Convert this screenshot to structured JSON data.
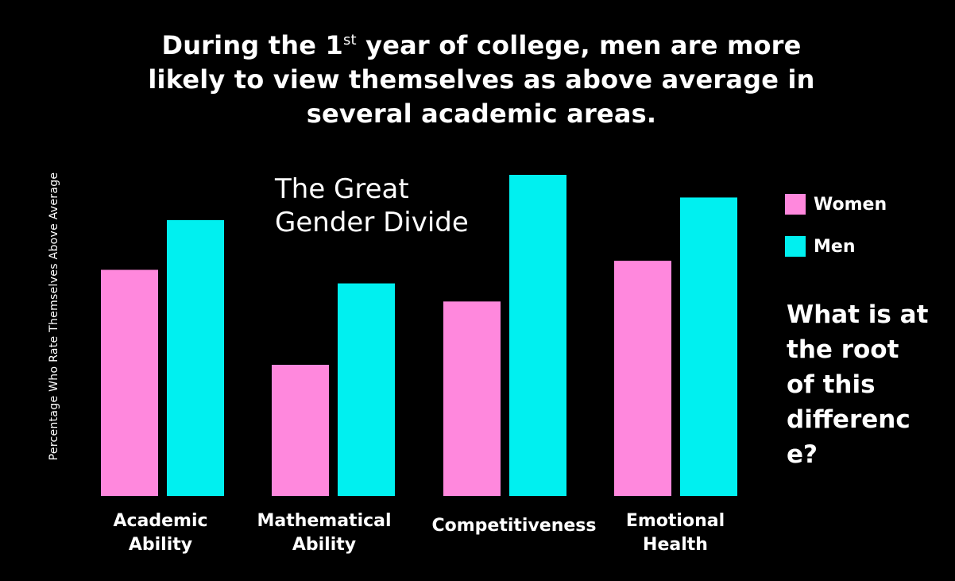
{
  "slide": {
    "title_part1": "During the 1",
    "title_sup": "st",
    "title_part2": " year of college, men are more likely to view themselves as above average in several academic areas.",
    "overlay_line1": "The Great",
    "overlay_line2": "Gender Divide",
    "question": "What is at\nthe root\nof this\ndifferenc\ne?",
    "background": "#000000"
  },
  "chart_data": {
    "type": "bar",
    "title": "",
    "xlabel": "",
    "ylabel": "Percentage Who Rate Themselves Above Average",
    "categories": [
      "Academic\nAbility",
      "Mathematical\nAbility",
      "Competitiveness",
      "Emotional\nHealth"
    ],
    "series": [
      {
        "name": "Women",
        "color": "#ff88dd",
        "values": [
          50,
          29,
          43,
          52
        ]
      },
      {
        "name": "Men",
        "color": "#00f0f0",
        "values": [
          61,
          47,
          71,
          66
        ]
      }
    ],
    "ylim": [
      0,
      71
    ],
    "grid": false,
    "legend": "right",
    "axis_ticks_shown": false
  }
}
